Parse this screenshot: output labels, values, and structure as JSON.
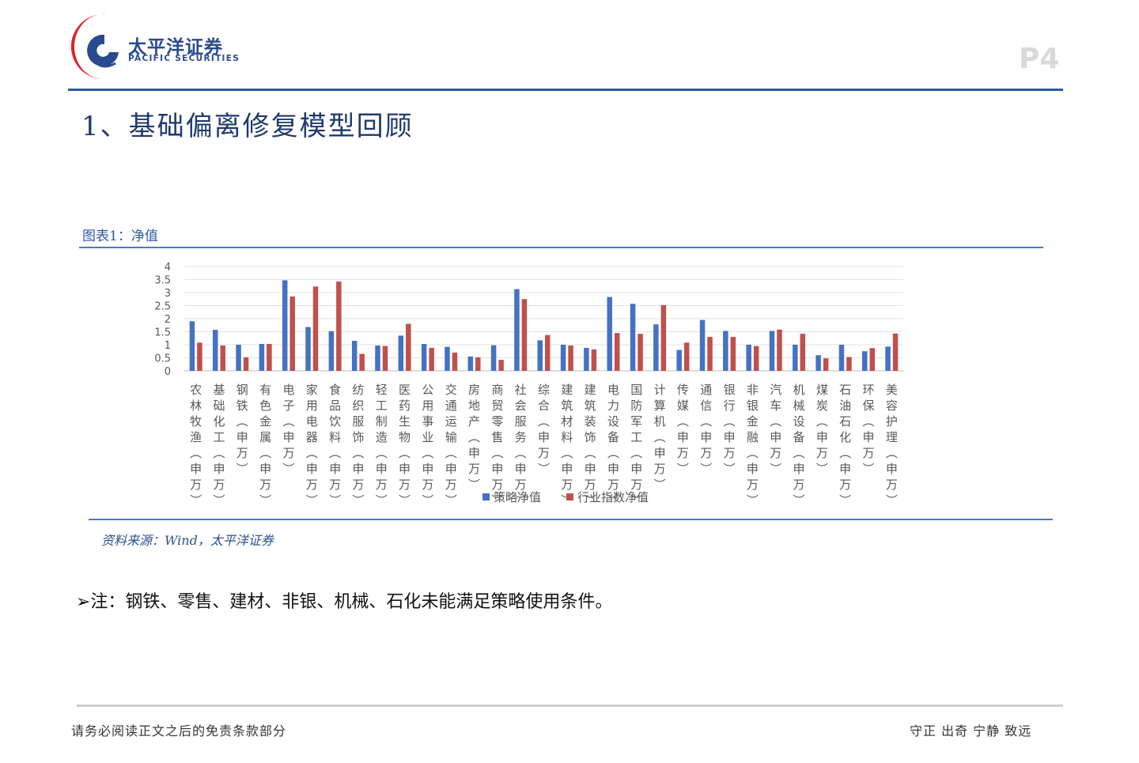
{
  "header": {
    "brand_cn": "太平洋证券",
    "brand_en": "PACIFIC SECURITIES",
    "page_number": "P4",
    "colors": {
      "brand_red": "#e0222a",
      "brand_blue": "#2a4a8e",
      "rule_blue": "#2d5aa0"
    }
  },
  "section_title": "1、基础偏离修复模型回顾",
  "figure_caption": "图表1：净值",
  "source": "资料来源：Wind，太平洋证券",
  "note": "➢注：钢铁、零售、建材、非银、机械、石化未能满足策略使用条件。",
  "footer": {
    "disclaimer": "请务必阅读正文之后的免责条款部分",
    "motto": "守正 出奇 宁静 致远"
  },
  "chart_data": {
    "type": "bar",
    "ylim": [
      0,
      4
    ],
    "yticks": [
      "0",
      "0.5",
      "1",
      "1.5",
      "2",
      "2.5",
      "3",
      "3.5",
      "4"
    ],
    "grid": true,
    "legend_position": "bottom",
    "categories": [
      "农林牧渔(申万)",
      "基础化工(申万)",
      "钢铁(申万)",
      "有色金属(申万)",
      "电子(申万)",
      "家用电器(申万)",
      "食品饮料(申万)",
      "纺织服饰(申万)",
      "轻工制造(申万)",
      "医药生物(申万)",
      "公用事业(申万)",
      "交通运输(申万)",
      "房地产(申万)",
      "商贸零售(申万)",
      "社会服务(申万)",
      "综合(申万)",
      "建筑材料(申万)",
      "建筑装饰(申万)",
      "电力设备(申万)",
      "国防军工(申万)",
      "计算机(申万)",
      "传媒(申万)",
      "通信(申万)",
      "银行(申万)",
      "非银金融(申万)",
      "汽车(申万)",
      "机械设备(申万)",
      "煤炭(申万)",
      "石油石化(申万)",
      "环保(申万)",
      "美容护理(申万)"
    ],
    "series": [
      {
        "name": "策略净值",
        "color": "#4472c4",
        "values": [
          1.9,
          1.57,
          1.0,
          1.03,
          3.47,
          1.68,
          1.52,
          1.15,
          0.97,
          1.35,
          1.03,
          0.92,
          0.55,
          0.98,
          3.13,
          1.17,
          1.0,
          0.88,
          2.83,
          2.57,
          1.78,
          0.8,
          1.95,
          1.53,
          1.0,
          1.53,
          1.0,
          0.6,
          1.0,
          0.75,
          0.93
        ]
      },
      {
        "name": "行业指数净值",
        "color": "#c0504d",
        "values": [
          1.08,
          0.97,
          0.52,
          1.03,
          2.85,
          3.23,
          3.42,
          0.65,
          0.95,
          1.8,
          0.88,
          0.7,
          0.52,
          0.42,
          2.75,
          1.37,
          0.97,
          0.82,
          1.45,
          1.42,
          2.52,
          1.08,
          1.3,
          1.3,
          0.95,
          1.58,
          1.42,
          0.48,
          0.53,
          0.87,
          1.43
        ]
      }
    ]
  }
}
